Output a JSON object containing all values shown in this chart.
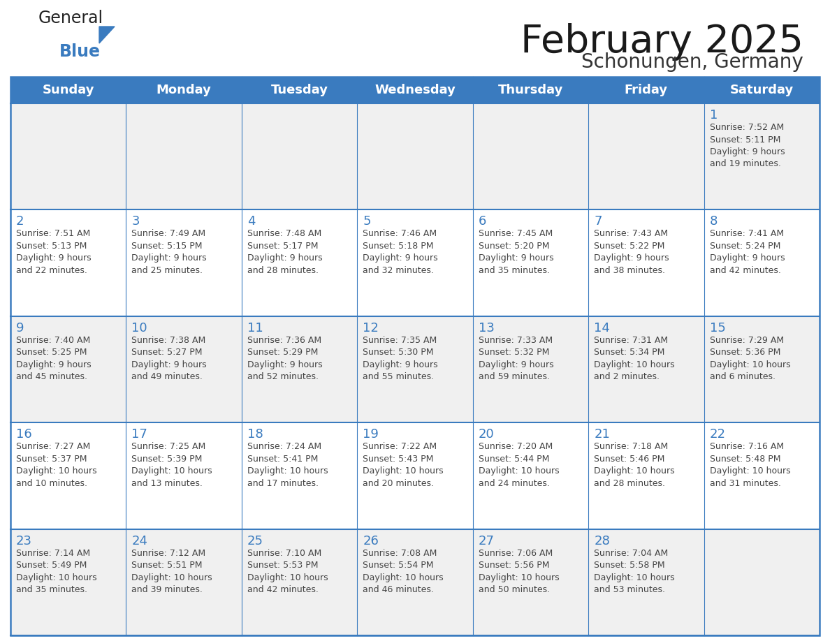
{
  "title": "February 2025",
  "subtitle": "Schonungen, Germany",
  "days_of_week": [
    "Sunday",
    "Monday",
    "Tuesday",
    "Wednesday",
    "Thursday",
    "Friday",
    "Saturday"
  ],
  "header_bg": "#3a7bbf",
  "header_text": "#ffffff",
  "row_bg_odd": "#f0f0f0",
  "row_bg_even": "#ffffff",
  "border_color": "#3a7bbf",
  "day_number_color": "#3a7bbf",
  "cell_text_color": "#444444",
  "logo_general_color": "#222222",
  "logo_blue_color": "#3a7bbf",
  "logo_triangle_color": "#3a7bbf",
  "calendar_data": [
    [
      null,
      null,
      null,
      null,
      null,
      null,
      {
        "day": 1,
        "sunrise": "7:52 AM",
        "sunset": "5:11 PM",
        "daylight": "9 hours\nand 19 minutes."
      }
    ],
    [
      {
        "day": 2,
        "sunrise": "7:51 AM",
        "sunset": "5:13 PM",
        "daylight": "9 hours\nand 22 minutes."
      },
      {
        "day": 3,
        "sunrise": "7:49 AM",
        "sunset": "5:15 PM",
        "daylight": "9 hours\nand 25 minutes."
      },
      {
        "day": 4,
        "sunrise": "7:48 AM",
        "sunset": "5:17 PM",
        "daylight": "9 hours\nand 28 minutes."
      },
      {
        "day": 5,
        "sunrise": "7:46 AM",
        "sunset": "5:18 PM",
        "daylight": "9 hours\nand 32 minutes."
      },
      {
        "day": 6,
        "sunrise": "7:45 AM",
        "sunset": "5:20 PM",
        "daylight": "9 hours\nand 35 minutes."
      },
      {
        "day": 7,
        "sunrise": "7:43 AM",
        "sunset": "5:22 PM",
        "daylight": "9 hours\nand 38 minutes."
      },
      {
        "day": 8,
        "sunrise": "7:41 AM",
        "sunset": "5:24 PM",
        "daylight": "9 hours\nand 42 minutes."
      }
    ],
    [
      {
        "day": 9,
        "sunrise": "7:40 AM",
        "sunset": "5:25 PM",
        "daylight": "9 hours\nand 45 minutes."
      },
      {
        "day": 10,
        "sunrise": "7:38 AM",
        "sunset": "5:27 PM",
        "daylight": "9 hours\nand 49 minutes."
      },
      {
        "day": 11,
        "sunrise": "7:36 AM",
        "sunset": "5:29 PM",
        "daylight": "9 hours\nand 52 minutes."
      },
      {
        "day": 12,
        "sunrise": "7:35 AM",
        "sunset": "5:30 PM",
        "daylight": "9 hours\nand 55 minutes."
      },
      {
        "day": 13,
        "sunrise": "7:33 AM",
        "sunset": "5:32 PM",
        "daylight": "9 hours\nand 59 minutes."
      },
      {
        "day": 14,
        "sunrise": "7:31 AM",
        "sunset": "5:34 PM",
        "daylight": "10 hours\nand 2 minutes."
      },
      {
        "day": 15,
        "sunrise": "7:29 AM",
        "sunset": "5:36 PM",
        "daylight": "10 hours\nand 6 minutes."
      }
    ],
    [
      {
        "day": 16,
        "sunrise": "7:27 AM",
        "sunset": "5:37 PM",
        "daylight": "10 hours\nand 10 minutes."
      },
      {
        "day": 17,
        "sunrise": "7:25 AM",
        "sunset": "5:39 PM",
        "daylight": "10 hours\nand 13 minutes."
      },
      {
        "day": 18,
        "sunrise": "7:24 AM",
        "sunset": "5:41 PM",
        "daylight": "10 hours\nand 17 minutes."
      },
      {
        "day": 19,
        "sunrise": "7:22 AM",
        "sunset": "5:43 PM",
        "daylight": "10 hours\nand 20 minutes."
      },
      {
        "day": 20,
        "sunrise": "7:20 AM",
        "sunset": "5:44 PM",
        "daylight": "10 hours\nand 24 minutes."
      },
      {
        "day": 21,
        "sunrise": "7:18 AM",
        "sunset": "5:46 PM",
        "daylight": "10 hours\nand 28 minutes."
      },
      {
        "day": 22,
        "sunrise": "7:16 AM",
        "sunset": "5:48 PM",
        "daylight": "10 hours\nand 31 minutes."
      }
    ],
    [
      {
        "day": 23,
        "sunrise": "7:14 AM",
        "sunset": "5:49 PM",
        "daylight": "10 hours\nand 35 minutes."
      },
      {
        "day": 24,
        "sunrise": "7:12 AM",
        "sunset": "5:51 PM",
        "daylight": "10 hours\nand 39 minutes."
      },
      {
        "day": 25,
        "sunrise": "7:10 AM",
        "sunset": "5:53 PM",
        "daylight": "10 hours\nand 42 minutes."
      },
      {
        "day": 26,
        "sunrise": "7:08 AM",
        "sunset": "5:54 PM",
        "daylight": "10 hours\nand 46 minutes."
      },
      {
        "day": 27,
        "sunrise": "7:06 AM",
        "sunset": "5:56 PM",
        "daylight": "10 hours\nand 50 minutes."
      },
      {
        "day": 28,
        "sunrise": "7:04 AM",
        "sunset": "5:58 PM",
        "daylight": "10 hours\nand 53 minutes."
      },
      null
    ]
  ]
}
